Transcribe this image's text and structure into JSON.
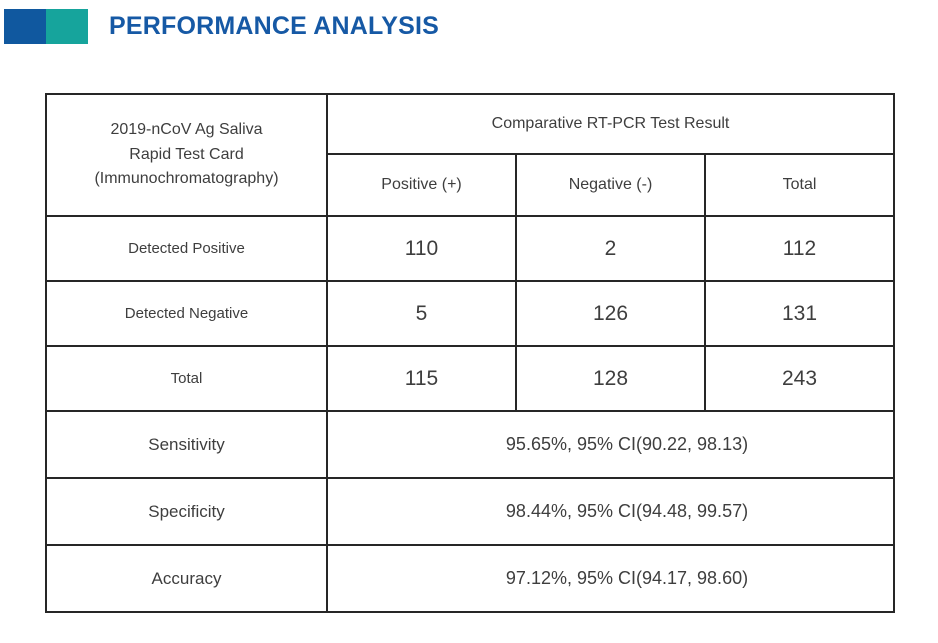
{
  "header": {
    "title": "PERFORMANCE ANALYSIS",
    "accent_blue": "#10589f",
    "accent_teal": "#16a49c",
    "title_color": "#1659a5"
  },
  "table": {
    "corner_header": "2019-nCoV Ag Saliva\nRapid Test Card\n(Immunochromatography)",
    "group_header": "Comparative RT-PCR Test Result",
    "columns": [
      "Positive (+)",
      "Negative (-)",
      "Total"
    ],
    "rows": [
      {
        "label": "Detected Positive",
        "values": [
          "110",
          "2",
          "112"
        ]
      },
      {
        "label": "Detected Negative",
        "values": [
          "5",
          "126",
          "131"
        ]
      },
      {
        "label": "Total",
        "values": [
          "115",
          "128",
          "243"
        ]
      }
    ],
    "summary_rows": [
      {
        "label": "Sensitivity",
        "value": "95.65%, 95% CI(90.22, 98.13)"
      },
      {
        "label": "Specificity",
        "value": "98.44%, 95% CI(94.48, 99.57)"
      },
      {
        "label": "Accuracy",
        "value": "97.12%, 95% CI(94.17, 98.60)"
      }
    ]
  }
}
